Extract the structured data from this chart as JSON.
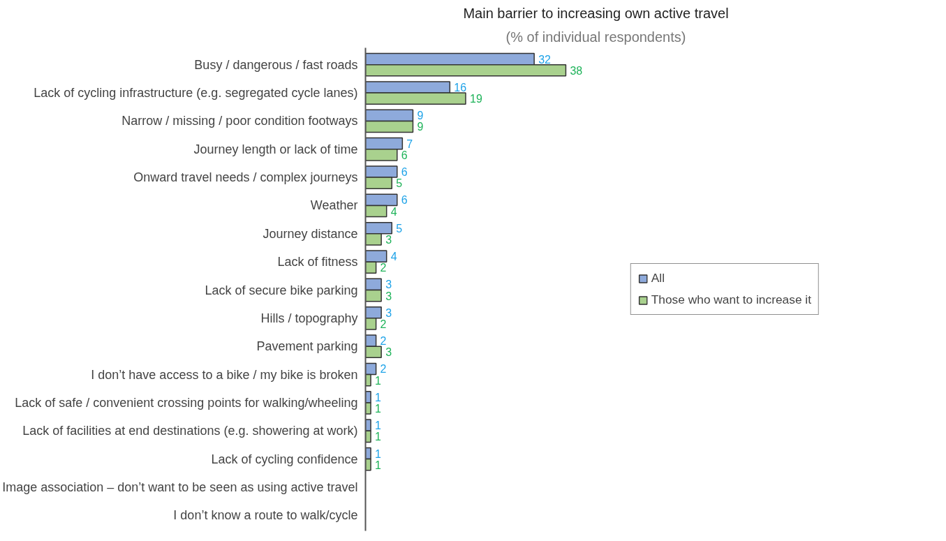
{
  "chart_data": {
    "type": "bar",
    "orientation": "horizontal",
    "title": "Main barrier to increasing own active travel",
    "subtitle": "(% of individual respondents)",
    "categories": [
      "Busy / dangerous / fast roads",
      "Lack of cycling infrastructure (e.g. segregated cycle lanes)",
      "Narrow / missing / poor condition footways",
      "Journey length or lack of time",
      "Onward travel needs / complex journeys",
      "Weather",
      "Journey distance",
      "Lack of fitness",
      "Lack of secure bike parking",
      "Hills / topography",
      "Pavement parking",
      "I don’t have access to a bike / my bike is broken",
      "Lack of safe / convenient crossing points for walking/wheeling",
      "Lack of facilities at end destinations (e.g. showering at work)",
      "Lack of cycling confidence",
      "Image association – don’t want to be seen as using active travel",
      "I don’t know a route to walk/cycle"
    ],
    "series": [
      {
        "name": "All",
        "color": "#8eaadb",
        "values": [
          32,
          16,
          9,
          7,
          6,
          6,
          5,
          4,
          3,
          3,
          2,
          2,
          1,
          1,
          1,
          0,
          0
        ],
        "value_labels": [
          "32",
          "16",
          "9",
          "7",
          "6",
          "6",
          "5",
          "4",
          "3",
          "3",
          "2",
          "2",
          "1",
          "1",
          "1",
          null,
          null
        ]
      },
      {
        "name": "Those who want to increase it",
        "color": "#a9d18e",
        "values": [
          38,
          19,
          9,
          6,
          5,
          4,
          3,
          2,
          3,
          2,
          3,
          1,
          1,
          1,
          1,
          0,
          0
        ],
        "value_labels": [
          "38",
          "19",
          "9",
          "6",
          "5",
          "4",
          "3",
          "2",
          "3",
          "2",
          "3",
          "1",
          "1",
          "1",
          "1",
          null,
          null
        ]
      }
    ],
    "legend": "right",
    "grid": false
  }
}
